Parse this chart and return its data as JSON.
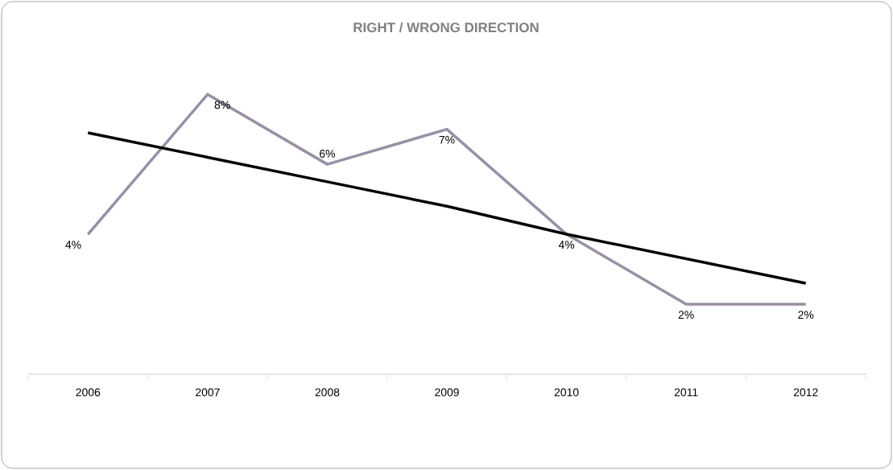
{
  "chart_data": {
    "type": "line",
    "title": "RIGHT / WRONG DIRECTION",
    "categories": [
      "2006",
      "2007",
      "2008",
      "2009",
      "2010",
      "2011",
      "2012"
    ],
    "series": [
      {
        "color": "#9a90a5",
        "values": [
          4,
          8,
          6,
          7,
          4,
          2,
          2
        ],
        "value_labels": [
          "4%",
          "8%",
          "6%",
          "7%",
          "4%",
          "2%",
          "2%"
        ]
      },
      {
        "type": "line",
        "color": "#000000",
        "values": [
          6.9,
          6.2,
          5.5,
          4.8,
          4.0,
          3.3,
          2.6
        ]
      }
    ]
  }
}
